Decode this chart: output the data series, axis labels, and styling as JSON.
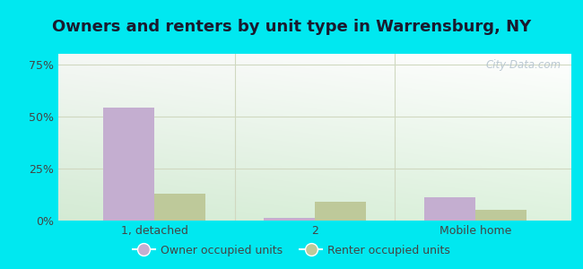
{
  "title": "Owners and renters by unit type in Warrensburg, NY",
  "categories": [
    "1, detached",
    "2",
    "Mobile home"
  ],
  "owner_values": [
    54,
    1.5,
    11
  ],
  "renter_values": [
    13,
    9,
    5
  ],
  "owner_color": "#c4aed0",
  "renter_color": "#bec99a",
  "yticks": [
    0,
    25,
    50,
    75
  ],
  "ytick_labels": [
    "0%",
    "25%",
    "50%",
    "75%"
  ],
  "ylim": [
    0,
    80
  ],
  "bar_width": 0.32,
  "background_color": "#00e8f0",
  "watermark": "City-Data.com",
  "legend_owner": "Owner occupied units",
  "legend_renter": "Renter occupied units",
  "title_fontsize": 13,
  "axis_fontsize": 9,
  "tick_color": "#444444",
  "grid_color": "#d0d8c0"
}
